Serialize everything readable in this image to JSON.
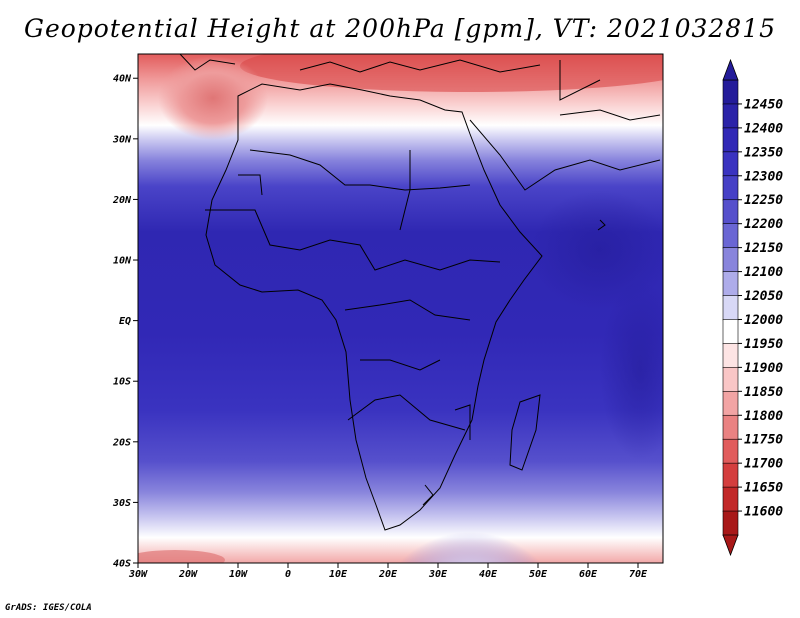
{
  "title": "Geopotential Height at 200hPa [gpm], VT: 2021032815",
  "credit": "GrADS: IGES/COLA",
  "axes": {
    "lat_labels": [
      "40N",
      "30N",
      "20N",
      "10N",
      "EQ",
      "10S",
      "20S",
      "30S",
      "40S"
    ],
    "lat_values": [
      40,
      30,
      20,
      10,
      0,
      -10,
      -20,
      -30,
      -40
    ],
    "lon_labels": [
      "30W",
      "20W",
      "10W",
      "0",
      "10E",
      "20E",
      "30E",
      "40E",
      "50E",
      "60E",
      "70E"
    ],
    "lon_values": [
      -30,
      -20,
      -10,
      0,
      10,
      20,
      30,
      40,
      50,
      60,
      70
    ],
    "lat_range": [
      -40,
      44
    ],
    "lon_range": [
      -30,
      75
    ]
  },
  "colorbar": {
    "labels": [
      "12450",
      "12400",
      "12350",
      "12300",
      "12250",
      "12200",
      "12150",
      "12100",
      "12050",
      "12000",
      "11950",
      "11900",
      "11850",
      "11800",
      "11750",
      "11700",
      "11650",
      "11600"
    ],
    "colors": [
      "#241c9a",
      "#2b23a8",
      "#3128b6",
      "#3a33c0",
      "#4640c6",
      "#5650cc",
      "#6a66d4",
      "#8884dc",
      "#aeacea",
      "#d8d8f6",
      "#ffffff",
      "#fde4e4",
      "#f9c6c6",
      "#f2a4a4",
      "#ea8282",
      "#e15c5c",
      "#d43e3e",
      "#c22828",
      "#a81818"
    ]
  }
}
